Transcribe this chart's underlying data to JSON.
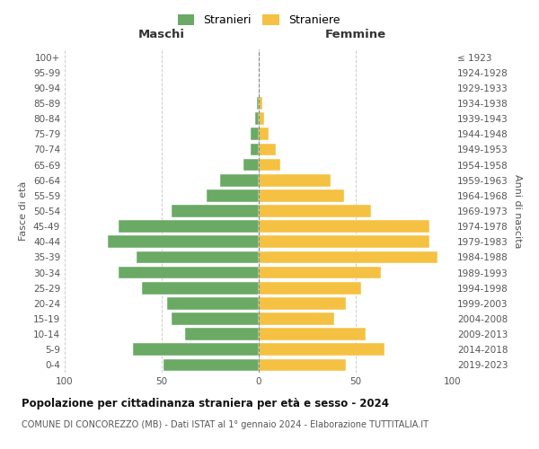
{
  "age_groups": [
    "0-4",
    "5-9",
    "10-14",
    "15-19",
    "20-24",
    "25-29",
    "30-34",
    "35-39",
    "40-44",
    "45-49",
    "50-54",
    "55-59",
    "60-64",
    "65-69",
    "70-74",
    "75-79",
    "80-84",
    "85-89",
    "90-94",
    "95-99",
    "100+"
  ],
  "birth_years": [
    "2019-2023",
    "2014-2018",
    "2009-2013",
    "2004-2008",
    "1999-2003",
    "1994-1998",
    "1989-1993",
    "1984-1988",
    "1979-1983",
    "1974-1978",
    "1969-1973",
    "1964-1968",
    "1959-1963",
    "1954-1958",
    "1949-1953",
    "1944-1948",
    "1939-1943",
    "1934-1938",
    "1929-1933",
    "1924-1928",
    "≤ 1923"
  ],
  "maschi": [
    49,
    65,
    38,
    45,
    47,
    60,
    72,
    63,
    78,
    72,
    45,
    27,
    20,
    8,
    4,
    4,
    2,
    1,
    0,
    0,
    0
  ],
  "femmine": [
    45,
    65,
    55,
    39,
    45,
    53,
    63,
    92,
    88,
    88,
    58,
    44,
    37,
    11,
    9,
    5,
    3,
    2,
    0,
    0,
    0
  ],
  "maschi_color": "#6aaa64",
  "femmine_color": "#f5c142",
  "title": "Popolazione per cittadinanza straniera per età e sesso - 2024",
  "subtitle": "COMUNE DI CONCOREZZO (MB) - Dati ISTAT al 1° gennaio 2024 - Elaborazione TUTTITALIA.IT",
  "xlabel_left": "Maschi",
  "xlabel_right": "Femmine",
  "ylabel_left": "Fasce di età",
  "ylabel_right": "Anni di nascita",
  "legend_maschi": "Stranieri",
  "legend_femmine": "Straniere",
  "xlim": 100,
  "background_color": "#ffffff",
  "grid_color": "#cccccc"
}
